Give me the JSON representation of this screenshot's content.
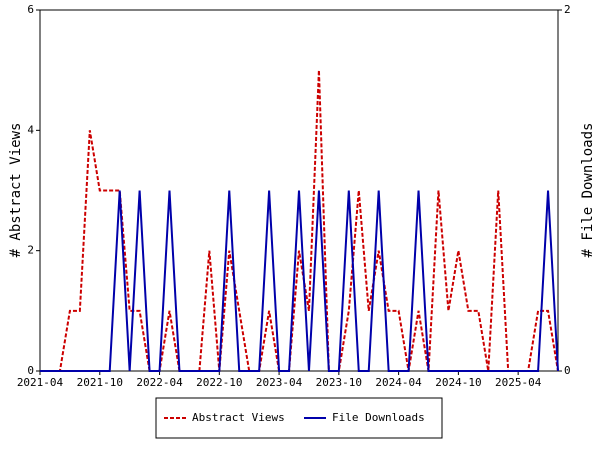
{
  "chart_data": {
    "type": "line",
    "categories": [
      "2021-04",
      null,
      null,
      null,
      null,
      null,
      "2021-10",
      null,
      null,
      null,
      null,
      null,
      "2022-04",
      null,
      null,
      null,
      null,
      null,
      "2022-10",
      null,
      null,
      null,
      null,
      null,
      "2023-04",
      null,
      null,
      null,
      null,
      null,
      "2023-10",
      null,
      null,
      null,
      null,
      null,
      "2024-04",
      null,
      null,
      null,
      null,
      null,
      "2024-10",
      null,
      null,
      null,
      null,
      null,
      "2025-04",
      null,
      null,
      null,
      null
    ],
    "series": [
      {
        "name": "Abstract Views",
        "color": "#cc0000",
        "dash": true,
        "values": [
          0,
          0,
          0,
          1,
          1,
          4,
          3,
          3,
          3,
          1,
          1,
          0,
          0,
          1,
          0,
          0,
          0,
          2,
          0,
          2,
          1,
          0,
          0,
          1,
          0,
          0,
          2,
          1,
          5,
          0,
          0,
          1,
          3,
          1,
          2,
          1,
          1,
          0,
          1,
          0,
          3,
          1,
          2,
          1,
          1,
          0,
          3,
          0,
          0,
          0,
          1,
          1,
          0
        ]
      },
      {
        "name": "File Downloads",
        "color": "#0000aa",
        "axis": "y2",
        "values": [
          0,
          0,
          0,
          0,
          0,
          0,
          0,
          0,
          1,
          0,
          1,
          0,
          0,
          1,
          0,
          0,
          0,
          0,
          0,
          1,
          0,
          0,
          0,
          1,
          0,
          0,
          1,
          0,
          1,
          0,
          0,
          1,
          0,
          0,
          1,
          0,
          0,
          0,
          1,
          0,
          0,
          0,
          0,
          0,
          0,
          0,
          0,
          0,
          0,
          0,
          0,
          1,
          0
        ]
      }
    ],
    "ylabel": "# Abstract Views",
    "y2label": "# File Downloads",
    "ylim": [
      0,
      6
    ],
    "yticks": [
      0,
      2,
      4,
      6
    ],
    "y2lim": [
      0,
      2
    ],
    "y2ticks": [
      0,
      2
    ],
    "legend": "bottom"
  }
}
